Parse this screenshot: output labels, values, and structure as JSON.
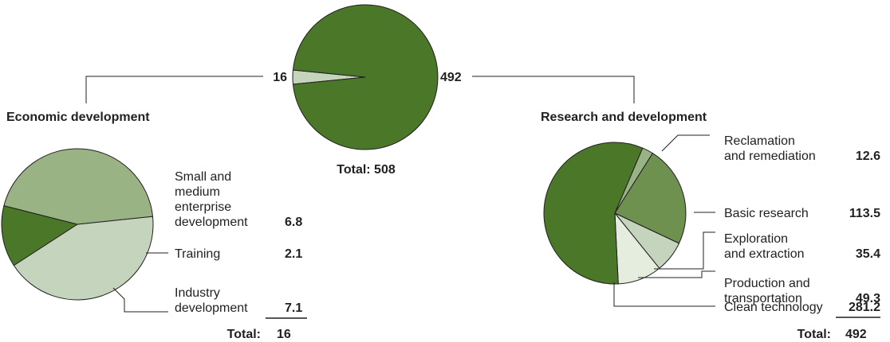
{
  "chart_data": [
    {
      "type": "pie",
      "name": "overview",
      "title": "",
      "slices": [
        {
          "label": "Economic development",
          "value": 16,
          "color": "#c5d5bd"
        },
        {
          "label": "Research and development",
          "value": 492,
          "color": "#4a7728"
        }
      ],
      "value_labels": {
        "left": "16",
        "right": "492"
      },
      "total_text": "Total: 508"
    },
    {
      "type": "pie",
      "name": "economic",
      "title": "Economic development",
      "slices": [
        {
          "label_lines": [
            "Small and",
            "medium",
            "enterprise",
            "development"
          ],
          "value": 6.8,
          "value_text": "6.8",
          "color": "#c5d5bd"
        },
        {
          "label_lines": [
            "Training"
          ],
          "value": 2.1,
          "value_text": "2.1",
          "color": "#4a7728"
        },
        {
          "label_lines": [
            "Industry",
            "development"
          ],
          "value": 7.1,
          "value_text": "7.1",
          "color": "#9ab385"
        }
      ],
      "total_label": "Total:",
      "total_value": "16"
    },
    {
      "type": "pie",
      "name": "research",
      "title": "Research and development",
      "slices": [
        {
          "label_lines": [
            "Reclamation",
            "and remediation"
          ],
          "value": 12.6,
          "value_text": "12.6",
          "color": "#9ab385"
        },
        {
          "label_lines": [
            "Basic research"
          ],
          "value": 113.5,
          "value_text": "113.5",
          "color": "#6e9150"
        },
        {
          "label_lines": [
            "Exploration",
            "and extraction"
          ],
          "value": 35.4,
          "value_text": "35.4",
          "color": "#c5d5bd"
        },
        {
          "label_lines": [
            "Production and",
            "transportation"
          ],
          "value": 49.3,
          "value_text": "49.3",
          "color": "#e5eddf"
        },
        {
          "label_lines": [
            "Clean technology"
          ],
          "value": 281.2,
          "value_text": "281.2",
          "color": "#4a7728"
        }
      ],
      "total_label": "Total:",
      "total_value": "492"
    }
  ]
}
